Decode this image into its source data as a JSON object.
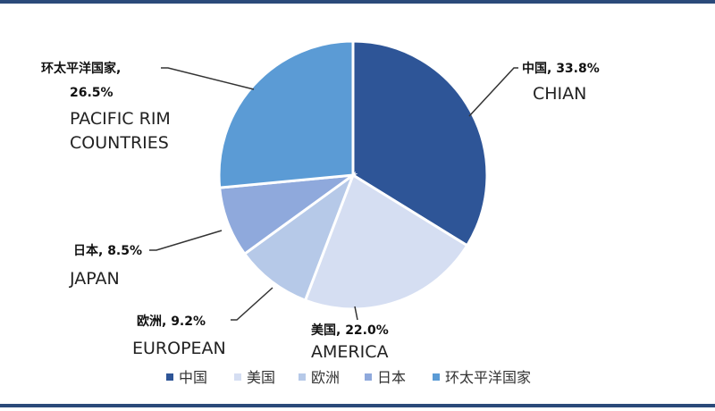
{
  "chart_data": {
    "type": "pie",
    "slices": [
      {
        "label": "中国",
        "value": 33.8,
        "pct_text": "33.8%",
        "label_line": "中国, 33.8%",
        "en": [
          "CHIAN"
        ],
        "color": "#2e5597"
      },
      {
        "label": "美国",
        "value": 22.0,
        "pct_text": "22.0%",
        "label_line": "美国, 22.0%",
        "en": [
          "AMERICA"
        ],
        "color": "#d5def2"
      },
      {
        "label": "欧洲",
        "value": 9.2,
        "pct_text": "9.2%",
        "label_line": "欧洲, 9.2%",
        "en": [
          "EUROPEAN"
        ],
        "color": "#b6c9e8"
      },
      {
        "label": "日本",
        "value": 8.5,
        "pct_text": "8.5%",
        "label_line": "日本, 8.5%",
        "en": [
          "JAPAN"
        ],
        "color": "#8fa9dc"
      },
      {
        "label": "环太平洋国家",
        "value": 26.5,
        "pct_text": "26.5%",
        "label_line": "环太平洋国家,",
        "label_line2": "26.5%",
        "en": [
          "PACIFIC RIM",
          "COUNTRIES"
        ],
        "color": "#5b9bd5"
      }
    ],
    "legend": {
      "placement": "bottom"
    }
  }
}
